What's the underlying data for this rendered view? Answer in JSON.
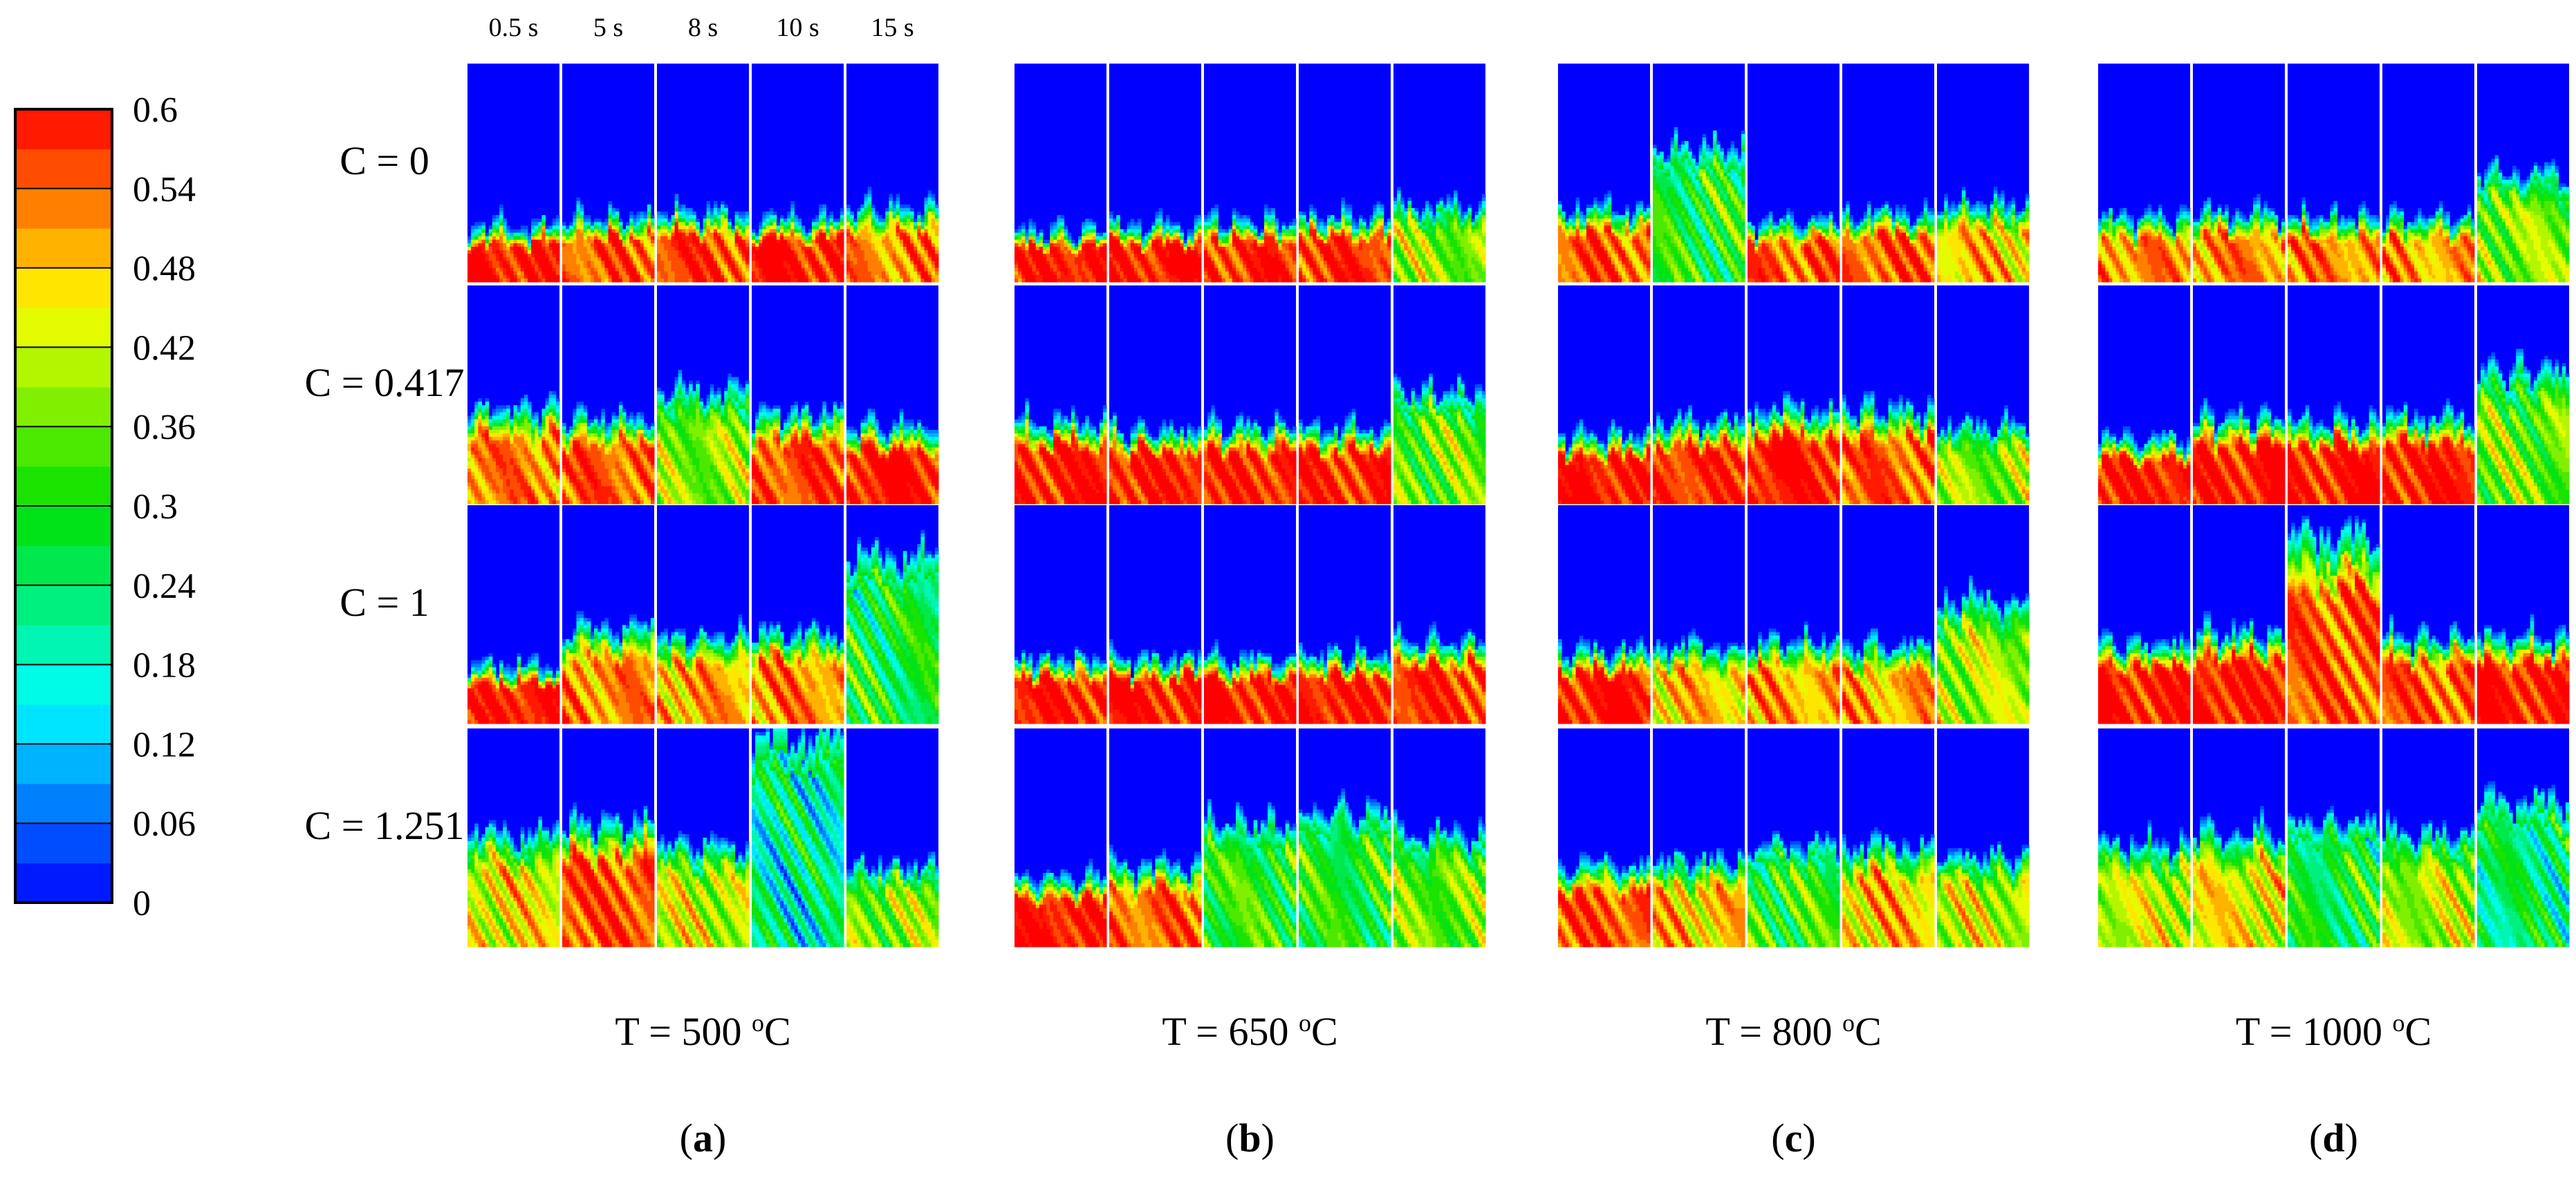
{
  "figure": {
    "colorbar": {
      "ticks": [
        "0.6",
        "0.54",
        "0.48",
        "0.42",
        "0.36",
        "0.3",
        "0.24",
        "0.18",
        "0.12",
        "0.06",
        "0"
      ],
      "min": 0,
      "max": 0.6,
      "levels": 20,
      "stops": [
        {
          "value": 0.0,
          "color": "#0000ff"
        },
        {
          "value": 0.15,
          "color": "#00ffff"
        },
        {
          "value": 0.3,
          "color": "#00e000"
        },
        {
          "value": 0.45,
          "color": "#ffff00"
        },
        {
          "value": 0.6,
          "color": "#ff0000"
        }
      ]
    },
    "time_labels": [
      "0.5 s",
      "5 s",
      "8 s",
      "10 s",
      "15 s"
    ],
    "row_labels": [
      "C = 0",
      "C = 0.417",
      "C = 1",
      "C = 1.251"
    ],
    "groups": [
      {
        "temperature_text": "T = 500",
        "unit_sup": "o",
        "unit": "C",
        "sub_open": "(",
        "sub_letter": "a",
        "sub_close": ")"
      },
      {
        "temperature_text": "T = 650",
        "unit_sup": "o",
        "unit": "C",
        "sub_open": "(",
        "sub_letter": "b",
        "sub_close": ")"
      },
      {
        "temperature_text": "T = 800",
        "unit_sup": "o",
        "unit": "C",
        "sub_open": "(",
        "sub_letter": "c",
        "sub_close": ")"
      },
      {
        "temperature_text": "T = 1000",
        "unit_sup": "o",
        "unit": "C",
        "sub_open": "(",
        "sub_letter": "d",
        "sub_close": ")"
      }
    ]
  },
  "chart_data": {
    "type": "heatmap",
    "title": "",
    "xlabel": "",
    "ylabel": "",
    "value_range": [
      0,
      0.6
    ],
    "time_points_s": [
      0.5,
      5,
      8,
      10,
      15
    ],
    "temperatures_C": [
      500,
      650,
      800,
      1000
    ],
    "C_values": [
      0,
      0.417,
      1,
      1.251
    ],
    "bed_fill_fraction_estimated": [
      [
        [
          0.24,
          0.28,
          0.3,
          0.27,
          0.32
        ],
        [
          0.42,
          0.38,
          0.5,
          0.4,
          0.34
        ],
        [
          0.25,
          0.42,
          0.38,
          0.4,
          0.75
        ],
        [
          0.5,
          0.55,
          0.45,
          0.95,
          0.35
        ]
      ],
      [
        [
          0.22,
          0.24,
          0.26,
          0.28,
          0.33
        ],
        [
          0.36,
          0.32,
          0.34,
          0.33,
          0.5
        ],
        [
          0.28,
          0.28,
          0.28,
          0.3,
          0.36
        ],
        [
          0.3,
          0.36,
          0.55,
          0.6,
          0.5
        ]
      ],
      [
        [
          0.32,
          0.6,
          0.26,
          0.3,
          0.34
        ],
        [
          0.3,
          0.36,
          0.42,
          0.42,
          0.34
        ],
        [
          0.32,
          0.34,
          0.36,
          0.34,
          0.55
        ],
        [
          0.36,
          0.38,
          0.45,
          0.45,
          0.4
        ]
      ],
      [
        [
          0.28,
          0.3,
          0.28,
          0.28,
          0.48
        ],
        [
          0.28,
          0.38,
          0.36,
          0.38,
          0.6
        ],
        [
          0.35,
          0.4,
          0.85,
          0.38,
          0.38
        ],
        [
          0.45,
          0.5,
          0.55,
          0.5,
          0.65
        ]
      ]
    ],
    "peak_fraction_estimated": [
      [
        [
          0.6,
          0.55,
          0.57,
          0.6,
          0.52
        ],
        [
          0.53,
          0.55,
          0.38,
          0.56,
          0.6
        ],
        [
          0.6,
          0.52,
          0.5,
          0.52,
          0.28
        ],
        [
          0.45,
          0.56,
          0.42,
          0.2,
          0.38
        ]
      ],
      [
        [
          0.6,
          0.6,
          0.58,
          0.58,
          0.38
        ],
        [
          0.6,
          0.6,
          0.59,
          0.59,
          0.36
        ],
        [
          0.6,
          0.6,
          0.6,
          0.6,
          0.58
        ],
        [
          0.6,
          0.54,
          0.32,
          0.3,
          0.36
        ]
      ],
      [
        [
          0.55,
          0.3,
          0.55,
          0.55,
          0.48
        ],
        [
          0.6,
          0.58,
          0.6,
          0.55,
          0.38
        ],
        [
          0.6,
          0.48,
          0.5,
          0.5,
          0.4
        ],
        [
          0.56,
          0.48,
          0.32,
          0.48,
          0.42
        ]
      ],
      [
        [
          0.52,
          0.52,
          0.52,
          0.5,
          0.38
        ],
        [
          0.6,
          0.6,
          0.6,
          0.6,
          0.36
        ],
        [
          0.6,
          0.6,
          0.55,
          0.55,
          0.6
        ],
        [
          0.42,
          0.45,
          0.28,
          0.4,
          0.24
        ]
      ]
    ]
  }
}
